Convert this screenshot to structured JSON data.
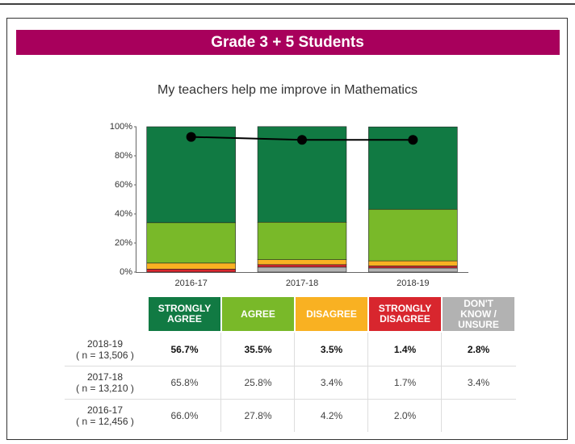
{
  "chart_data": {
    "type": "stacked_bar",
    "header": "Grade 3 + 5 Students",
    "title": "My teachers help me improve in Mathematics",
    "categories": [
      "2016-17",
      "2017-18",
      "2018-19"
    ],
    "sample_sizes": [
      "( n = 12,456 )",
      "( n = 13,210 )",
      "( n = 13,506 )"
    ],
    "series": [
      {
        "name": "STRONGLY AGREE",
        "color": "#117a43",
        "values": [
          66.0,
          65.8,
          56.7
        ],
        "value_labels": [
          "66.0%",
          "65.8%",
          "56.7%"
        ]
      },
      {
        "name": "AGREE",
        "color": "#79b929",
        "values": [
          27.8,
          25.8,
          35.5
        ],
        "value_labels": [
          "27.8%",
          "25.8%",
          "35.5%"
        ]
      },
      {
        "name": "DISAGREE",
        "color": "#f9b122",
        "values": [
          4.2,
          3.4,
          3.5
        ],
        "value_labels": [
          "4.2%",
          "3.4%",
          "3.5%"
        ]
      },
      {
        "name": "STRONGLY DISAGREE",
        "color": "#d8262e",
        "values": [
          2.0,
          1.7,
          1.4
        ],
        "value_labels": [
          "2.0%",
          "1.7%",
          "1.4%"
        ]
      },
      {
        "name": "DON'T KNOW / UNSURE",
        "color": "#b2b2b2",
        "values": [
          null,
          3.4,
          2.8
        ],
        "value_labels": [
          null,
          "3.4%",
          "2.8%"
        ]
      }
    ],
    "line": {
      "color": "#000000",
      "values": [
        93,
        91,
        91
      ]
    },
    "ylim": [
      0,
      100
    ],
    "yticks": [
      {
        "value": 0,
        "label": "0%"
      },
      {
        "value": 20,
        "label": "20%"
      },
      {
        "value": 40,
        "label": "40%"
      },
      {
        "value": 60,
        "label": "60%"
      },
      {
        "value": 80,
        "label": "80%"
      },
      {
        "value": 100,
        "label": "100%"
      }
    ]
  }
}
